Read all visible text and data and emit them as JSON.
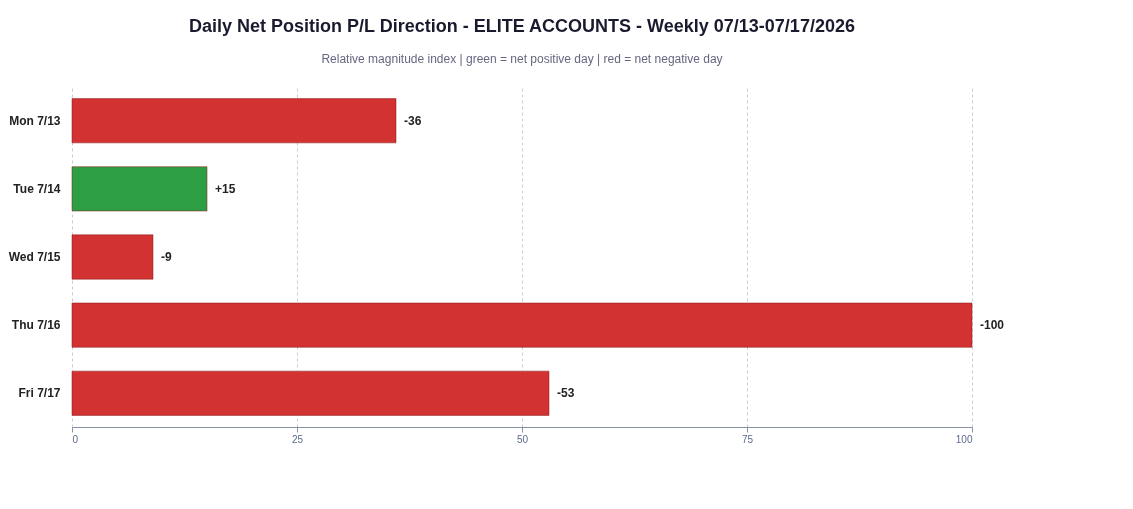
{
  "chart_data": {
    "type": "bar",
    "orientation": "horizontal",
    "title": "Daily Net Position P/L Direction - ELITE ACCOUNTS - Weekly 07/13-07/17/2026",
    "subtitle": "Relative magnitude index  |  green = net positive day  |  red = net negative day",
    "categories": [
      "Mon 7/13",
      "Tue 7/14",
      "Wed 7/15",
      "Thu 7/16",
      "Fri 7/17"
    ],
    "values": [
      36,
      15,
      9,
      100,
      53
    ],
    "annotations": [
      {
        "text": "-36",
        "x": 36,
        "y": "Mon 7/13"
      },
      {
        "text": "+15",
        "x": 15,
        "y": "Tue 7/14"
      },
      {
        "text": "-9",
        "x": 9,
        "y": "Wed 7/15"
      },
      {
        "text": "-100",
        "x": 100,
        "y": "Thu 7/16"
      },
      {
        "text": "-53",
        "x": 53,
        "y": "Fri 7/17"
      }
    ],
    "colors": [
      "#d23232",
      "#2e9e44",
      "#d23232",
      "#d23232",
      "#d23232"
    ],
    "xlim": [
      0,
      100
    ],
    "xticks": [
      0,
      25,
      50,
      75,
      100
    ],
    "grid": "x"
  }
}
